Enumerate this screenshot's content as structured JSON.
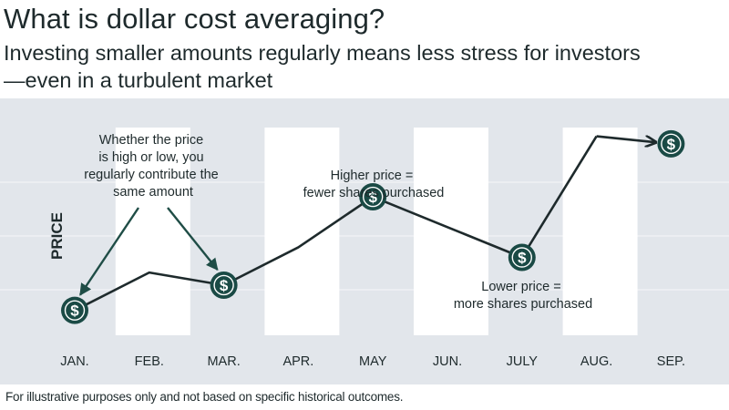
{
  "header": {
    "title": "What is dollar cost averaging?",
    "subtitle": "Investing smaller amounts regularly means less stress for investors—even in a turbulent market"
  },
  "footnote": "For illustrative purposes only and not based on specific historical outcomes.",
  "colors": {
    "plot_background": "#e2e6eb",
    "column_band": "#ffffff",
    "line": "#1e2a2c",
    "marker": "#1a4a45",
    "arrow": "#1f4d46",
    "text": "#1e2a2c"
  },
  "chart_data": {
    "type": "line",
    "title": "What is dollar cost averaging?",
    "subtitle": "Investing smaller amounts regularly means less stress for investors—even in a turbulent market",
    "xlabel": "",
    "ylabel": "PRICE",
    "y_ticks_shown": false,
    "grid": "horizontal",
    "ylim": [
      0,
      10
    ],
    "categories": [
      "JAN.",
      "FEB.",
      "MAR.",
      "APR.",
      "MAY",
      "JUN.",
      "JULY",
      "AUG.",
      "SEP."
    ],
    "values": [
      1.6,
      3.1,
      2.6,
      4.1,
      6.1,
      4.9,
      3.7,
      8.5,
      8.2
    ],
    "purchase_markers": [
      {
        "category": "JAN.",
        "icon": "dollar-icon",
        "symbol": "$"
      },
      {
        "category": "MAR.",
        "icon": "dollar-icon",
        "symbol": "$"
      },
      {
        "category": "MAY",
        "icon": "dollar-icon",
        "symbol": "$"
      },
      {
        "category": "JULY",
        "icon": "dollar-icon",
        "symbol": "$"
      },
      {
        "category": "SEP.",
        "icon": "dollar-icon",
        "symbol": "$"
      }
    ],
    "annotations": [
      {
        "id": "contribution",
        "lines": [
          "Whether the price",
          "is high or low, you",
          "regularly contribute the",
          "same amount"
        ]
      },
      {
        "id": "higher",
        "lines": [
          "Higher price =",
          "fewer shares purchased"
        ]
      },
      {
        "id": "lower",
        "lines": [
          "Lower price =",
          "more shares purchased"
        ]
      }
    ]
  }
}
